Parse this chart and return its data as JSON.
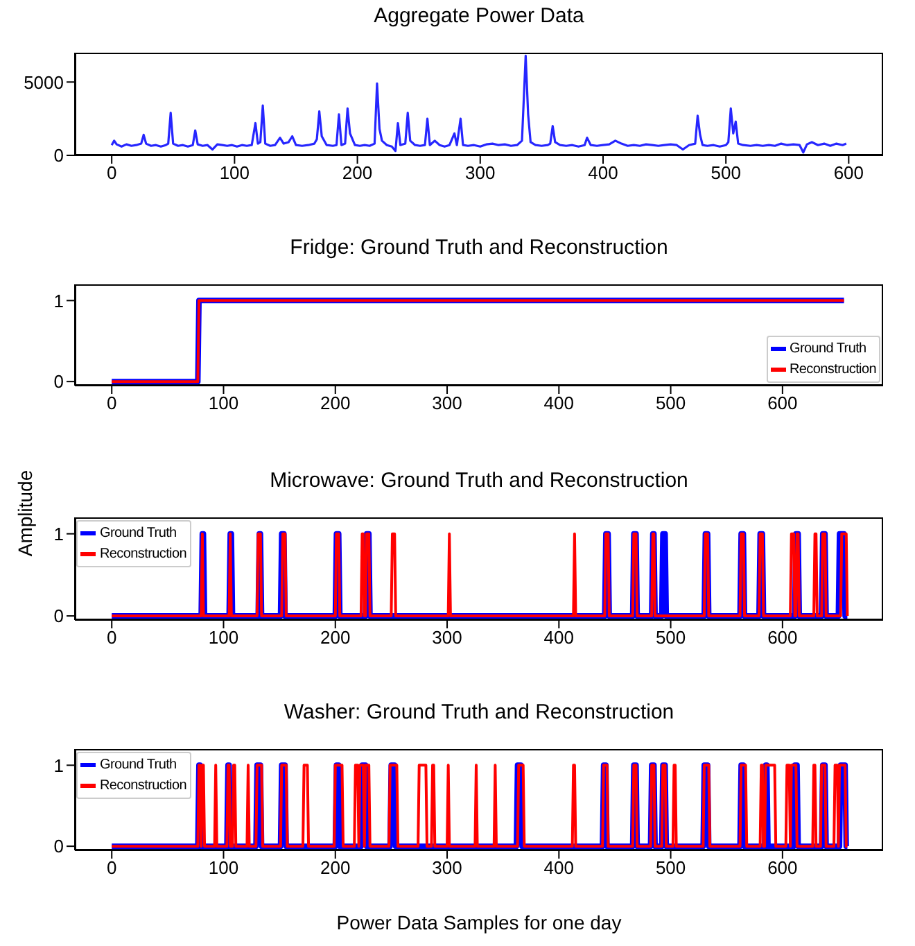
{
  "chart_data": [
    {
      "type": "line",
      "title": "Aggregate Power Data",
      "xlim": [
        -30,
        628
      ],
      "xticks": [
        0,
        100,
        200,
        300,
        400,
        500,
        600
      ],
      "ylim": [
        0,
        7000
      ],
      "yticks": [
        0,
        5000
      ],
      "series": [
        {
          "color": "#0000ff",
          "x": [
            0,
            2,
            4,
            8,
            12,
            16,
            20,
            24,
            26,
            28,
            32,
            36,
            40,
            44,
            46,
            48,
            50,
            54,
            58,
            62,
            66,
            68,
            70,
            74,
            78,
            82,
            86,
            90,
            94,
            98,
            102,
            106,
            110,
            114,
            117,
            119,
            121,
            123,
            125,
            129,
            133,
            137,
            140,
            144,
            147,
            150,
            155,
            160,
            165,
            167,
            169,
            171,
            175,
            180,
            183,
            185,
            187,
            190,
            192,
            194,
            198,
            202,
            206,
            210,
            214,
            216,
            218,
            220,
            224,
            228,
            231,
            233,
            235,
            239,
            241,
            243,
            247,
            251,
            255,
            257,
            259,
            263,
            267,
            271,
            275,
            279,
            281,
            284,
            286,
            290,
            295,
            300,
            305,
            310,
            315,
            320,
            325,
            330,
            334,
            337,
            339,
            341,
            345,
            350,
            355,
            357,
            359,
            361,
            365,
            370,
            375,
            380,
            385,
            387,
            390,
            395,
            400,
            405,
            410,
            415,
            420,
            425,
            430,
            435,
            440,
            445,
            450,
            455,
            460,
            465,
            470,
            475,
            477,
            479,
            481,
            485,
            490,
            495,
            500,
            502,
            504,
            506,
            508,
            510,
            514,
            520,
            525,
            530,
            535,
            540,
            545,
            550,
            555,
            560,
            563,
            566,
            570,
            575,
            580,
            585,
            590,
            595,
            598
          ],
          "values": [
            700,
            1000,
            750,
            600,
            750,
            650,
            700,
            800,
            1400,
            800,
            650,
            700,
            600,
            700,
            800,
            2900,
            800,
            650,
            700,
            600,
            700,
            1700,
            750,
            650,
            700,
            400,
            750,
            700,
            650,
            700,
            600,
            700,
            650,
            700,
            2200,
            800,
            900,
            3400,
            800,
            650,
            700,
            1200,
            800,
            900,
            1300,
            700,
            650,
            700,
            800,
            1100,
            3000,
            1300,
            700,
            650,
            700,
            2800,
            700,
            800,
            3200,
            1500,
            700,
            650,
            700,
            650,
            800,
            4900,
            1800,
            1000,
            700,
            600,
            300,
            2200,
            700,
            800,
            2900,
            1000,
            700,
            650,
            700,
            2500,
            700,
            1000,
            700,
            600,
            700,
            1500,
            700,
            2500,
            700,
            650,
            700,
            600,
            750,
            800,
            700,
            750,
            650,
            700,
            1000,
            6800,
            2800,
            900,
            700,
            650,
            700,
            800,
            2000,
            900,
            700,
            650,
            700,
            600,
            700,
            1200,
            700,
            650,
            700,
            750,
            1000,
            800,
            650,
            700,
            650,
            750,
            700,
            650,
            700,
            750,
            700,
            400,
            700,
            800,
            2700,
            1400,
            700,
            650,
            700,
            600,
            700,
            900,
            3200,
            1500,
            2300,
            800,
            700,
            650,
            700,
            650,
            700,
            650,
            800,
            700,
            750,
            700,
            200,
            750,
            900,
            700,
            800,
            650,
            800,
            700,
            800
          ]
        }
      ]
    },
    {
      "type": "line",
      "title": "Fridge: Ground Truth and Reconstruction",
      "xlim": [
        -33,
        690
      ],
      "xticks": [
        0,
        100,
        200,
        300,
        400,
        500,
        600
      ],
      "ylim": [
        -0.05,
        1.2
      ],
      "yticks": [
        0,
        1
      ],
      "legend": "bottom right",
      "series": [
        {
          "name": "Ground Truth",
          "color": "#0000ff",
          "x": [
            0,
            77,
            78,
            655
          ],
          "values": [
            0,
            0,
            1,
            1
          ]
        },
        {
          "name": "Reconstruction",
          "color": "#ff0000",
          "x": [
            0,
            77,
            78,
            655
          ],
          "values": [
            0,
            0,
            1,
            1
          ]
        }
      ]
    },
    {
      "type": "line",
      "title": "Microwave: Ground Truth and Reconstruction",
      "ylabel": "Amplitude",
      "xlim": [
        -33,
        690
      ],
      "xticks": [
        0,
        100,
        200,
        300,
        400,
        500,
        600
      ],
      "ylim": [
        -0.05,
        1.2
      ],
      "yticks": [
        0,
        1
      ],
      "legend": "top left",
      "series": [
        {
          "name": "Ground Truth",
          "color": "#0000ff",
          "x": [
            0,
            80,
            81,
            82,
            83,
            105,
            106,
            107,
            108,
            131,
            132,
            133,
            134,
            151,
            152,
            154,
            155,
            200,
            201,
            203,
            204,
            227,
            228,
            230,
            231,
            441,
            442,
            444,
            445,
            466,
            467,
            469,
            470,
            483,
            484,
            485,
            486,
            492,
            493,
            495,
            496,
            530,
            531,
            533,
            534,
            562,
            563,
            565,
            566,
            579,
            580,
            582,
            583,
            611,
            612,
            614,
            615,
            635,
            636,
            638,
            639,
            650,
            651,
            655,
            656,
            658
          ],
          "values": [
            0,
            0,
            1,
            1,
            0,
            0,
            1,
            1,
            0,
            0,
            1,
            1,
            0,
            0,
            1,
            1,
            0,
            0,
            1,
            1,
            0,
            0,
            1,
            1,
            0,
            0,
            1,
            1,
            0,
            0,
            1,
            1,
            0,
            0,
            1,
            1,
            0,
            0,
            1,
            1,
            0,
            0,
            1,
            1,
            0,
            0,
            1,
            1,
            0,
            0,
            1,
            1,
            0,
            0,
            1,
            1,
            0,
            0,
            1,
            1,
            0,
            0,
            1,
            1,
            0,
            0
          ]
        },
        {
          "name": "Reconstruction",
          "color": "#ff0000",
          "x": [
            0,
            80,
            81,
            81,
            82,
            105,
            106,
            106,
            107,
            130,
            131,
            133,
            134,
            152,
            153,
            155,
            156,
            200,
            201,
            203,
            204,
            223,
            224,
            225,
            226,
            227,
            228,
            230,
            231,
            250,
            251,
            253,
            254,
            301,
            302,
            302,
            303,
            413,
            414,
            414,
            415,
            441,
            442,
            444,
            445,
            466,
            467,
            469,
            470,
            483,
            484,
            485,
            486,
            530,
            531,
            533,
            534,
            562,
            563,
            565,
            566,
            579,
            580,
            582,
            583,
            607,
            608,
            610,
            611,
            612,
            613,
            614,
            615,
            628,
            629,
            630,
            631,
            635,
            636,
            638,
            639,
            652,
            653,
            657,
            658
          ],
          "values": [
            0,
            0,
            1,
            1,
            0,
            0,
            1,
            1,
            0,
            0,
            1,
            1,
            0,
            0,
            1,
            1,
            0,
            0,
            1,
            1,
            0,
            0,
            1,
            1,
            0,
            0,
            1,
            1,
            0,
            0,
            1,
            1,
            0,
            0,
            1,
            1,
            0,
            0,
            1,
            1,
            0,
            0,
            1,
            1,
            0,
            0,
            1,
            1,
            0,
            0,
            1,
            1,
            0,
            0,
            1,
            1,
            0,
            0,
            1,
            1,
            0,
            0,
            1,
            1,
            0,
            0,
            1,
            1,
            0,
            0,
            1,
            1,
            0,
            0,
            1,
            1,
            0,
            0,
            1,
            1,
            0,
            0,
            1,
            1,
            0
          ]
        }
      ]
    },
    {
      "type": "line",
      "title": "Washer: Ground Truth and Reconstruction",
      "xlabel": "Power Data Samples for one day",
      "xlim": [
        -33,
        690
      ],
      "xticks": [
        0,
        100,
        200,
        300,
        400,
        500,
        600
      ],
      "ylim": [
        -0.05,
        1.2
      ],
      "yticks": [
        0,
        1
      ],
      "legend": "top left",
      "series": [
        {
          "name": "Ground Truth",
          "color": "#0000ff",
          "x": [
            0,
            77,
            78,
            79,
            80,
            103,
            104,
            105,
            106,
            129,
            130,
            133,
            134,
            151,
            152,
            155,
            156,
            200,
            201,
            203,
            204,
            223,
            224,
            227,
            228,
            249,
            250,
            253,
            254,
            362,
            363,
            366,
            367,
            439,
            440,
            442,
            443,
            466,
            467,
            469,
            470,
            482,
            483,
            485,
            486,
            492,
            493,
            495,
            496,
            529,
            530,
            533,
            534,
            562,
            563,
            565,
            566,
            584,
            585,
            586,
            587,
            610,
            611,
            613,
            614,
            635,
            636,
            638,
            639,
            651,
            652,
            656,
            657,
            658
          ],
          "values": [
            0,
            0,
            1,
            1,
            0,
            0,
            1,
            1,
            0,
            0,
            1,
            1,
            0,
            0,
            1,
            1,
            0,
            0,
            1,
            1,
            0,
            0,
            1,
            1,
            0,
            0,
            1,
            1,
            0,
            0,
            1,
            1,
            0,
            0,
            1,
            1,
            0,
            0,
            1,
            1,
            0,
            0,
            1,
            1,
            0,
            0,
            1,
            1,
            0,
            0,
            1,
            1,
            0,
            0,
            1,
            1,
            0,
            0,
            1,
            1,
            0,
            0,
            1,
            1,
            0,
            0,
            1,
            1,
            0,
            0,
            1,
            1,
            0,
            0
          ]
        },
        {
          "name": "Reconstruction",
          "color": "#ff0000",
          "x": [
            0,
            77,
            78,
            79,
            80,
            80,
            81,
            82,
            83,
            92,
            93,
            93,
            94,
            103,
            104,
            105,
            106,
            108,
            109,
            110,
            111,
            121,
            122,
            122,
            123,
            129,
            130,
            134,
            135,
            151,
            152,
            156,
            157,
            171,
            172,
            175,
            176,
            199,
            200,
            206,
            207,
            217,
            218,
            220,
            221,
            221,
            222,
            225,
            226,
            226,
            227,
            230,
            231,
            248,
            249,
            255,
            256,
            274,
            275,
            281,
            282,
            286,
            287,
            288,
            289,
            300,
            301,
            301,
            302,
            325,
            326,
            326,
            327,
            342,
            343,
            343,
            344,
            363,
            364,
            368,
            369,
            412,
            413,
            414,
            415,
            439,
            440,
            443,
            444,
            466,
            467,
            469,
            470,
            482,
            483,
            485,
            486,
            492,
            493,
            495,
            496,
            502,
            503,
            504,
            505,
            529,
            530,
            534,
            535,
            562,
            563,
            567,
            568,
            580,
            581,
            582,
            583,
            584,
            585,
            593,
            594,
            603,
            604,
            606,
            607,
            607,
            608,
            612,
            613,
            627,
            628,
            629,
            630,
            634,
            635,
            638,
            639,
            646,
            647,
            649,
            650,
            650,
            651,
            656,
            657,
            658
          ],
          "values": [
            0,
            0,
            1,
            1,
            0,
            0,
            1,
            1,
            0,
            0,
            1,
            1,
            0,
            0,
            1,
            1,
            0,
            0,
            1,
            1,
            0,
            0,
            1,
            1,
            0,
            0,
            1,
            1,
            0,
            0,
            1,
            1,
            0,
            0,
            1,
            1,
            0,
            0,
            1,
            1,
            0,
            0,
            1,
            1,
            0,
            0,
            1,
            1,
            0,
            0,
            1,
            1,
            0,
            0,
            1,
            1,
            0,
            0,
            1,
            1,
            0,
            0,
            1,
            1,
            0,
            0,
            1,
            1,
            0,
            0,
            1,
            1,
            0,
            0,
            1,
            1,
            0,
            0,
            1,
            1,
            0,
            0,
            1,
            1,
            0,
            0,
            1,
            1,
            0,
            0,
            1,
            1,
            0,
            0,
            1,
            1,
            0,
            0,
            1,
            1,
            0,
            0,
            1,
            1,
            0,
            0,
            1,
            1,
            0,
            0,
            1,
            1,
            0,
            0,
            1,
            1,
            0,
            0,
            1,
            1,
            0,
            0,
            1,
            1,
            0,
            0,
            1,
            1,
            0,
            0,
            1,
            1,
            0,
            0,
            1,
            1,
            0,
            0,
            1,
            1,
            0,
            0,
            1,
            1,
            0,
            0
          ]
        }
      ]
    }
  ]
}
